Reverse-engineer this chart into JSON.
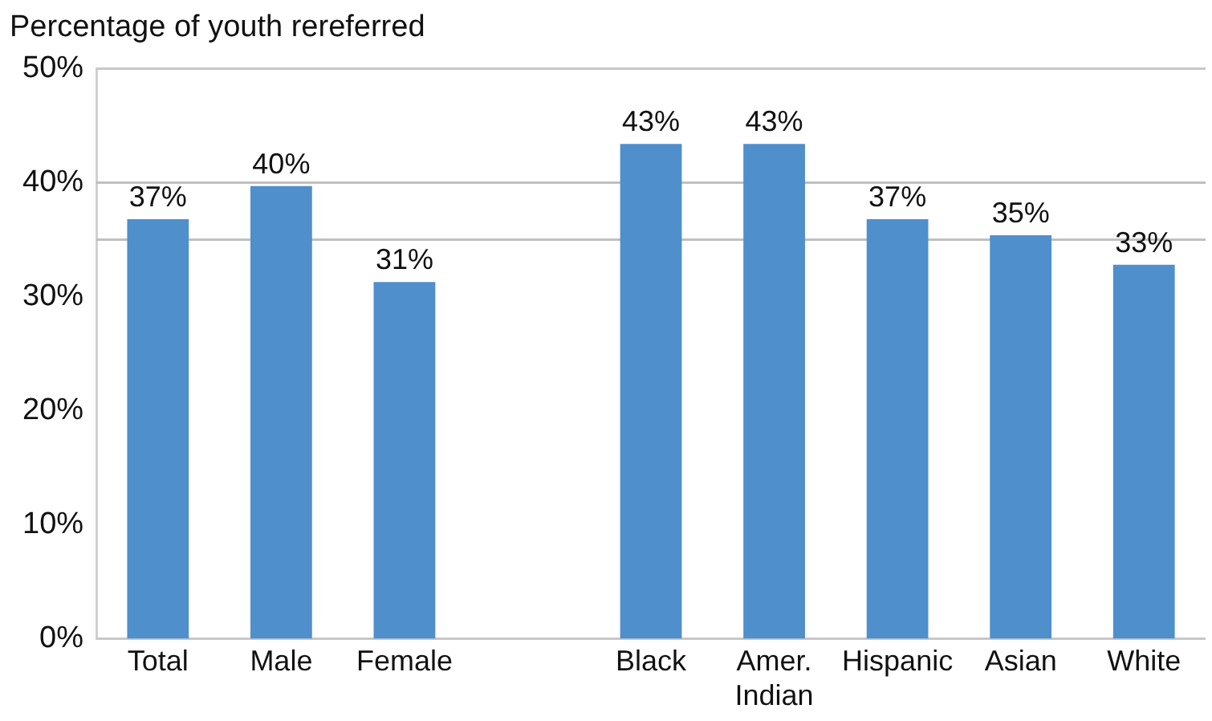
{
  "chart_data": {
    "type": "bar",
    "title": "Percentage of youth rereferred",
    "categories": [
      "Total",
      "Male",
      "Female",
      null,
      "Black",
      "Amer.\nIndian",
      "Hispanic",
      "Asian",
      "White"
    ],
    "values": [
      36.8,
      39.7,
      31.3,
      null,
      43.4,
      43.4,
      36.8,
      35.4,
      32.8
    ],
    "value_labels": [
      "37%",
      "40%",
      "31%",
      null,
      "43%",
      "43%",
      "37%",
      "35%",
      "33%"
    ],
    "color": "#4f8fcc",
    "ylim": [
      0,
      50
    ],
    "yticks": [
      {
        "value": 0,
        "label": "0%"
      },
      {
        "value": 10,
        "label": "10%"
      },
      {
        "value": 20,
        "label": "20%"
      },
      {
        "value": 30,
        "label": "30%"
      },
      {
        "value": 40,
        "label": "40%"
      },
      {
        "value": 50,
        "label": "50%"
      }
    ],
    "ref_lines": [
      {
        "axis": "y",
        "value": 40,
        "label": null,
        "color": "#c0c0c0"
      },
      {
        "axis": "y",
        "value": 35,
        "label": null,
        "color": "#c0c0c0"
      }
    ],
    "grid": false,
    "legend": false
  }
}
